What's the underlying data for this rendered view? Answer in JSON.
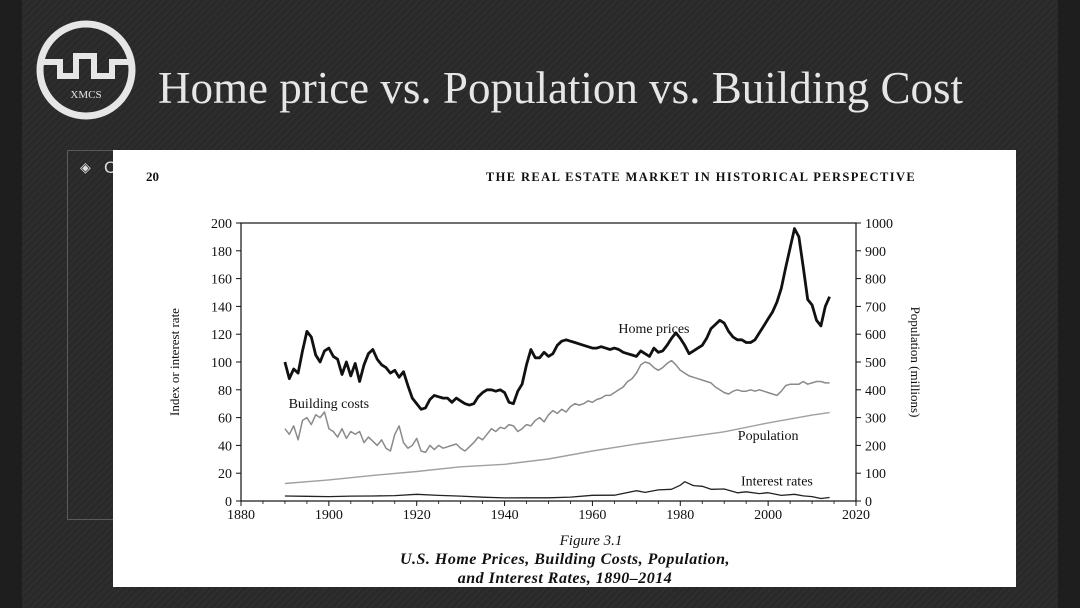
{
  "slide": {
    "title": "Home price vs. Population vs. Building Cost",
    "logo_text": "XMCS",
    "bullet_text": "C"
  },
  "figure": {
    "page_number": "20",
    "running_head": "THE REAL ESTATE MARKET IN HISTORICAL PERSPECTIVE",
    "caption_number": "Figure 3.1",
    "caption_line1": "U.S. Home Prices, Building Costs, Population,",
    "caption_line2": "and Interest Rates, 1890–2014"
  },
  "chart_data": {
    "type": "line",
    "xlabel": "",
    "ylabel": "Index or interest rate",
    "y2label": "Population (millions)",
    "xlim": [
      1880,
      2020
    ],
    "ylim": [
      0,
      200
    ],
    "y2lim": [
      0,
      1000
    ],
    "x_ticks": [
      1880,
      1900,
      1920,
      1940,
      1960,
      1980,
      2000,
      2020
    ],
    "y_ticks": [
      0,
      20,
      40,
      60,
      80,
      100,
      120,
      140,
      160,
      180,
      200
    ],
    "y2_ticks": [
      0,
      100,
      200,
      300,
      400,
      500,
      600,
      700,
      800,
      900,
      1000
    ],
    "grid": false,
    "annotations": [
      {
        "text": "Home prices",
        "x": 1974,
        "y": 121
      },
      {
        "text": "Building costs",
        "x": 1900,
        "y": 67
      },
      {
        "text": "Population",
        "x": 2000,
        "y": 44
      },
      {
        "text": "Interest rates",
        "x": 2002,
        "y": 11
      }
    ],
    "series": [
      {
        "name": "Home prices",
        "axis": "left",
        "color": "#111111",
        "width": 2.8,
        "points": [
          [
            1890,
            100
          ],
          [
            1891,
            88
          ],
          [
            1892,
            95
          ],
          [
            1893,
            92
          ],
          [
            1894,
            108
          ],
          [
            1895,
            122
          ],
          [
            1896,
            118
          ],
          [
            1897,
            105
          ],
          [
            1898,
            100
          ],
          [
            1899,
            108
          ],
          [
            1900,
            110
          ],
          [
            1901,
            104
          ],
          [
            1902,
            102
          ],
          [
            1903,
            91
          ],
          [
            1904,
            100
          ],
          [
            1905,
            90
          ],
          [
            1906,
            99
          ],
          [
            1907,
            86
          ],
          [
            1908,
            98
          ],
          [
            1909,
            106
          ],
          [
            1910,
            109
          ],
          [
            1911,
            102
          ],
          [
            1912,
            98
          ],
          [
            1913,
            96
          ],
          [
            1914,
            92
          ],
          [
            1915,
            94
          ],
          [
            1916,
            89
          ],
          [
            1917,
            93
          ],
          [
            1918,
            83
          ],
          [
            1919,
            74
          ],
          [
            1920,
            70
          ],
          [
            1921,
            66
          ],
          [
            1922,
            67
          ],
          [
            1923,
            73
          ],
          [
            1924,
            76
          ],
          [
            1925,
            75
          ],
          [
            1926,
            74
          ],
          [
            1927,
            74
          ],
          [
            1928,
            71
          ],
          [
            1929,
            74
          ],
          [
            1930,
            72
          ],
          [
            1931,
            70
          ],
          [
            1932,
            69
          ],
          [
            1933,
            70
          ],
          [
            1934,
            75
          ],
          [
            1935,
            78
          ],
          [
            1936,
            80
          ],
          [
            1937,
            80
          ],
          [
            1938,
            79
          ],
          [
            1939,
            80
          ],
          [
            1940,
            78
          ],
          [
            1941,
            71
          ],
          [
            1942,
            70
          ],
          [
            1943,
            79
          ],
          [
            1944,
            84
          ],
          [
            1945,
            98
          ],
          [
            1946,
            109
          ],
          [
            1947,
            103
          ],
          [
            1948,
            103
          ],
          [
            1949,
            107
          ],
          [
            1950,
            104
          ],
          [
            1951,
            106
          ],
          [
            1952,
            112
          ],
          [
            1953,
            115
          ],
          [
            1954,
            116
          ],
          [
            1955,
            115
          ],
          [
            1956,
            114
          ],
          [
            1957,
            113
          ],
          [
            1958,
            112
          ],
          [
            1959,
            111
          ],
          [
            1960,
            110
          ],
          [
            1961,
            110
          ],
          [
            1962,
            111
          ],
          [
            1963,
            110
          ],
          [
            1964,
            109
          ],
          [
            1965,
            110
          ],
          [
            1966,
            109
          ],
          [
            1967,
            107
          ],
          [
            1968,
            106
          ],
          [
            1969,
            105
          ],
          [
            1970,
            104
          ],
          [
            1971,
            108
          ],
          [
            1972,
            106
          ],
          [
            1973,
            104
          ],
          [
            1974,
            110
          ],
          [
            1975,
            107
          ],
          [
            1976,
            108
          ],
          [
            1977,
            112
          ],
          [
            1978,
            117
          ],
          [
            1979,
            121
          ],
          [
            1980,
            117
          ],
          [
            1981,
            112
          ],
          [
            1982,
            106
          ],
          [
            1983,
            108
          ],
          [
            1984,
            110
          ],
          [
            1985,
            112
          ],
          [
            1986,
            117
          ],
          [
            1987,
            124
          ],
          [
            1988,
            127
          ],
          [
            1989,
            130
          ],
          [
            1990,
            128
          ],
          [
            1991,
            122
          ],
          [
            1992,
            118
          ],
          [
            1993,
            116
          ],
          [
            1994,
            116
          ],
          [
            1995,
            114
          ],
          [
            1996,
            114
          ],
          [
            1997,
            116
          ],
          [
            1998,
            121
          ],
          [
            1999,
            126
          ],
          [
            2000,
            131
          ],
          [
            2001,
            136
          ],
          [
            2002,
            143
          ],
          [
            2003,
            153
          ],
          [
            2004,
            168
          ],
          [
            2005,
            182
          ],
          [
            2006,
            196
          ],
          [
            2007,
            190
          ],
          [
            2008,
            168
          ],
          [
            2009,
            145
          ],
          [
            2010,
            141
          ],
          [
            2011,
            130
          ],
          [
            2012,
            126
          ],
          [
            2013,
            140
          ],
          [
            2014,
            147
          ]
        ]
      },
      {
        "name": "Building costs",
        "axis": "left",
        "color": "#8a8a8a",
        "width": 1.5,
        "points": [
          [
            1890,
            52
          ],
          [
            1891,
            48
          ],
          [
            1892,
            54
          ],
          [
            1893,
            44
          ],
          [
            1894,
            58
          ],
          [
            1895,
            60
          ],
          [
            1896,
            55
          ],
          [
            1897,
            62
          ],
          [
            1898,
            60
          ],
          [
            1899,
            64
          ],
          [
            1900,
            52
          ],
          [
            1901,
            50
          ],
          [
            1902,
            46
          ],
          [
            1903,
            52
          ],
          [
            1904,
            45
          ],
          [
            1905,
            50
          ],
          [
            1906,
            48
          ],
          [
            1907,
            50
          ],
          [
            1908,
            42
          ],
          [
            1909,
            46
          ],
          [
            1910,
            43
          ],
          [
            1911,
            40
          ],
          [
            1912,
            44
          ],
          [
            1913,
            38
          ],
          [
            1914,
            36
          ],
          [
            1915,
            48
          ],
          [
            1916,
            54
          ],
          [
            1917,
            42
          ],
          [
            1918,
            38
          ],
          [
            1919,
            40
          ],
          [
            1920,
            45
          ],
          [
            1921,
            36
          ],
          [
            1922,
            35
          ],
          [
            1923,
            40
          ],
          [
            1924,
            37
          ],
          [
            1925,
            40
          ],
          [
            1926,
            38
          ],
          [
            1927,
            39
          ],
          [
            1928,
            40
          ],
          [
            1929,
            41
          ],
          [
            1930,
            38
          ],
          [
            1931,
            36
          ],
          [
            1932,
            39
          ],
          [
            1933,
            42
          ],
          [
            1934,
            46
          ],
          [
            1935,
            44
          ],
          [
            1936,
            48
          ],
          [
            1937,
            52
          ],
          [
            1938,
            50
          ],
          [
            1939,
            53
          ],
          [
            1940,
            52
          ],
          [
            1941,
            55
          ],
          [
            1942,
            54
          ],
          [
            1943,
            50
          ],
          [
            1944,
            52
          ],
          [
            1945,
            55
          ],
          [
            1946,
            54
          ],
          [
            1947,
            58
          ],
          [
            1948,
            60
          ],
          [
            1949,
            57
          ],
          [
            1950,
            62
          ],
          [
            1951,
            65
          ],
          [
            1952,
            63
          ],
          [
            1953,
            66
          ],
          [
            1954,
            64
          ],
          [
            1955,
            68
          ],
          [
            1956,
            70
          ],
          [
            1957,
            69
          ],
          [
            1958,
            70
          ],
          [
            1959,
            72
          ],
          [
            1960,
            71
          ],
          [
            1961,
            73
          ],
          [
            1962,
            74
          ],
          [
            1963,
            76
          ],
          [
            1964,
            76
          ],
          [
            1965,
            78
          ],
          [
            1966,
            80
          ],
          [
            1967,
            82
          ],
          [
            1968,
            86
          ],
          [
            1969,
            88
          ],
          [
            1970,
            92
          ],
          [
            1971,
            98
          ],
          [
            1972,
            100
          ],
          [
            1973,
            99
          ],
          [
            1974,
            96
          ],
          [
            1975,
            94
          ],
          [
            1976,
            96
          ],
          [
            1977,
            99
          ],
          [
            1978,
            101
          ],
          [
            1979,
            98
          ],
          [
            1980,
            94
          ],
          [
            1981,
            92
          ],
          [
            1982,
            90
          ],
          [
            1983,
            89
          ],
          [
            1984,
            88
          ],
          [
            1985,
            87
          ],
          [
            1986,
            86
          ],
          [
            1987,
            85
          ],
          [
            1988,
            82
          ],
          [
            1989,
            80
          ],
          [
            1990,
            78
          ],
          [
            1991,
            77
          ],
          [
            1992,
            79
          ],
          [
            1993,
            80
          ],
          [
            1994,
            79
          ],
          [
            1995,
            79
          ],
          [
            1996,
            80
          ],
          [
            1997,
            79
          ],
          [
            1998,
            80
          ],
          [
            1999,
            79
          ],
          [
            2000,
            78
          ],
          [
            2001,
            77
          ],
          [
            2002,
            76
          ],
          [
            2003,
            79
          ],
          [
            2004,
            83
          ],
          [
            2005,
            84
          ],
          [
            2006,
            84
          ],
          [
            2007,
            84
          ],
          [
            2008,
            86
          ],
          [
            2009,
            84
          ],
          [
            2010,
            85
          ],
          [
            2011,
            86
          ],
          [
            2012,
            86
          ],
          [
            2013,
            85
          ],
          [
            2014,
            85
          ]
        ]
      },
      {
        "name": "Population",
        "axis": "right",
        "color": "#a0a0a0",
        "width": 1.4,
        "points": [
          [
            1890,
            63
          ],
          [
            1900,
            76
          ],
          [
            1910,
            92
          ],
          [
            1920,
            106
          ],
          [
            1930,
            123
          ],
          [
            1940,
            132
          ],
          [
            1950,
            151
          ],
          [
            1960,
            180
          ],
          [
            1970,
            205
          ],
          [
            1980,
            227
          ],
          [
            1990,
            249
          ],
          [
            2000,
            281
          ],
          [
            2010,
            309
          ],
          [
            2014,
            318
          ]
        ]
      },
      {
        "name": "Interest rates",
        "axis": "left",
        "color": "#222222",
        "width": 1.3,
        "points": [
          [
            1890,
            3.6
          ],
          [
            1895,
            3.4
          ],
          [
            1900,
            3.2
          ],
          [
            1905,
            3.5
          ],
          [
            1910,
            3.6
          ],
          [
            1915,
            3.9
          ],
          [
            1920,
            4.8
          ],
          [
            1925,
            4.0
          ],
          [
            1930,
            3.5
          ],
          [
            1935,
            2.7
          ],
          [
            1940,
            2.2
          ],
          [
            1945,
            2.3
          ],
          [
            1950,
            2.3
          ],
          [
            1955,
            2.8
          ],
          [
            1960,
            4.1
          ],
          [
            1965,
            4.2
          ],
          [
            1970,
            7.4
          ],
          [
            1972,
            6.2
          ],
          [
            1975,
            8.0
          ],
          [
            1978,
            8.4
          ],
          [
            1980,
            11.4
          ],
          [
            1981,
            13.9
          ],
          [
            1983,
            11.1
          ],
          [
            1985,
            10.6
          ],
          [
            1987,
            8.4
          ],
          [
            1990,
            8.6
          ],
          [
            1993,
            5.9
          ],
          [
            1995,
            6.6
          ],
          [
            1998,
            5.3
          ],
          [
            2000,
            6.0
          ],
          [
            2003,
            4.0
          ],
          [
            2006,
            4.8
          ],
          [
            2008,
            3.7
          ],
          [
            2010,
            3.2
          ],
          [
            2012,
            1.8
          ],
          [
            2014,
            2.5
          ]
        ]
      }
    ]
  }
}
